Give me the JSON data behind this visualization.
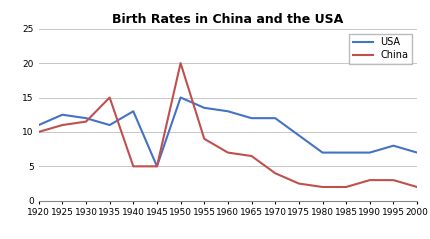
{
  "title": "Birth Rates in China and the USA",
  "years": [
    1920,
    1925,
    1930,
    1935,
    1940,
    1945,
    1950,
    1955,
    1960,
    1965,
    1970,
    1975,
    1980,
    1985,
    1990,
    1995,
    2000
  ],
  "usa": [
    11,
    12.5,
    12,
    11,
    13,
    5,
    15,
    13.5,
    13,
    12,
    12,
    9.5,
    7,
    7,
    7,
    8,
    7
  ],
  "china": [
    10,
    11,
    11.5,
    15,
    5,
    5,
    20,
    9,
    7,
    6.5,
    4,
    2.5,
    2,
    2,
    3,
    3,
    2
  ],
  "usa_color": "#4472C4",
  "china_color": "#C0504D",
  "background_color": "#FFFFFF",
  "ylim": [
    0,
    25
  ],
  "yticks": [
    0,
    5,
    10,
    15,
    20,
    25
  ],
  "title_fontsize": 9,
  "tick_fontsize": 6.5,
  "legend_loc": "upper right",
  "grid_color": "#C8C8C8",
  "linewidth": 1.5
}
